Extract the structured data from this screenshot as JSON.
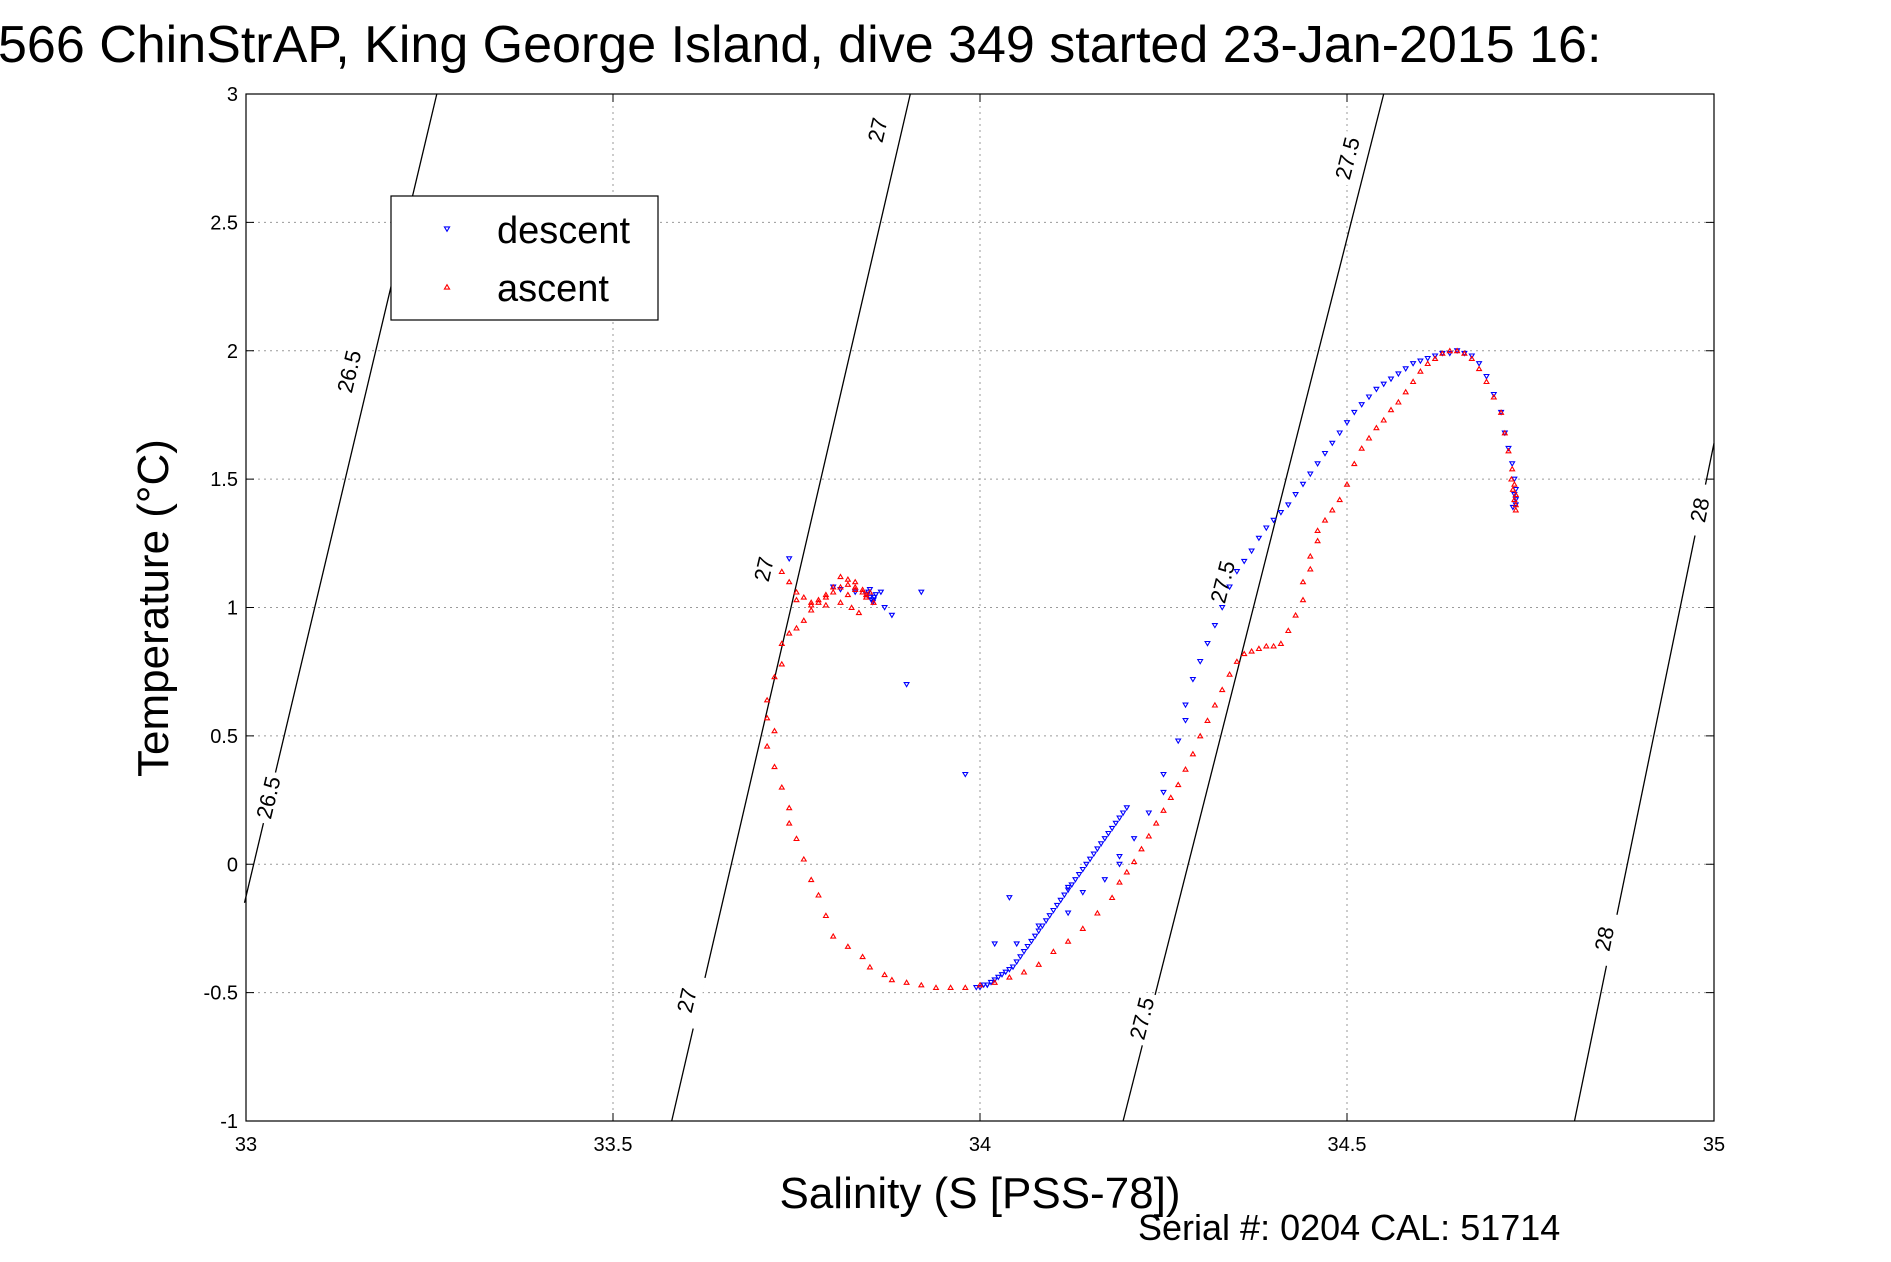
{
  "chart_data": {
    "type": "scatter",
    "title": "566 ChinStrAP, King George Island, dive 349 started 23-Jan-2015 16:",
    "xlabel": "Salinity (S [PSS-78])",
    "ylabel": "Temperature (°C)",
    "footer": "Serial #: 0204  CAL: 51714",
    "xlim": [
      33,
      35
    ],
    "ylim": [
      -1,
      3
    ],
    "grid": true,
    "legend_position": "top-left",
    "xticks": [
      {
        "value": 33,
        "label": "33"
      },
      {
        "value": 33.5,
        "label": "33.5"
      },
      {
        "value": 34,
        "label": "34"
      },
      {
        "value": 34.5,
        "label": "34.5"
      },
      {
        "value": 35,
        "label": "35"
      }
    ],
    "yticks": [
      {
        "value": -1,
        "label": "-1"
      },
      {
        "value": -0.5,
        "label": "-0.5"
      },
      {
        "value": 0,
        "label": "0"
      },
      {
        "value": 0.5,
        "label": "0.5"
      },
      {
        "value": 1,
        "label": "1"
      },
      {
        "value": 1.5,
        "label": "1.5"
      },
      {
        "value": 2,
        "label": "2"
      },
      {
        "value": 2.5,
        "label": "2.5"
      },
      {
        "value": 3,
        "label": "3"
      }
    ],
    "contours": [
      {
        "level": "26.5",
        "points": [
          [
            32.998,
            -0.15
          ],
          [
            33.26,
            3.0
          ]
        ],
        "labels": [
          {
            "text": "26.5",
            "x": 33.14,
            "y": 1.92
          },
          {
            "text": "26.5",
            "x": 33.03,
            "y": 0.26
          }
        ]
      },
      {
        "level": "27",
        "points": [
          [
            33.58,
            -1.0
          ],
          [
            33.905,
            3.0
          ]
        ],
        "labels": [
          {
            "text": "27",
            "x": 33.86,
            "y": 2.86
          },
          {
            "text": "27",
            "x": 33.705,
            "y": 1.15
          },
          {
            "text": "27",
            "x": 33.6,
            "y": -0.53
          }
        ]
      },
      {
        "level": "27.5",
        "points": [
          [
            34.195,
            -1.0
          ],
          [
            34.55,
            3.0
          ]
        ],
        "labels": [
          {
            "text": "27.5",
            "x": 34.5,
            "y": 2.75
          },
          {
            "text": "27.5",
            "x": 34.33,
            "y": 1.1
          },
          {
            "text": "27.5",
            "x": 34.22,
            "y": -0.6
          }
        ]
      },
      {
        "level": "28",
        "points": [
          [
            34.81,
            -1.0
          ],
          [
            35.0,
            1.64
          ]
        ],
        "labels": [
          {
            "text": "28",
            "x": 34.98,
            "y": 1.38
          },
          {
            "text": "28",
            "x": 34.85,
            "y": -0.29
          }
        ]
      }
    ],
    "series": [
      {
        "name": "descent",
        "color": "#0000ff",
        "marker": "triangle-down",
        "x": [
          33.74,
          33.855,
          33.88,
          33.85,
          33.865,
          33.8,
          33.81,
          33.83,
          33.845,
          33.85,
          33.852,
          33.854,
          33.856,
          33.858,
          33.848,
          33.87,
          33.9,
          33.92,
          33.98,
          34.04,
          34.02,
          34.01,
          34.05,
          34.08,
          34.12,
          34.12,
          34.14,
          34.17,
          34.19,
          34.19,
          34.21,
          34.23,
          34.25,
          34.25,
          34.27,
          34.28,
          34.28,
          34.29,
          34.3,
          34.31,
          34.32,
          34.33,
          34.34,
          34.35,
          34.36,
          34.37,
          34.38,
          34.39,
          34.4,
          34.41,
          34.42,
          34.43,
          34.44,
          34.45,
          34.46,
          34.47,
          34.48,
          34.49,
          34.5,
          34.51,
          34.52,
          34.53,
          34.54,
          34.55,
          34.56,
          34.57,
          34.58,
          34.59,
          34.6,
          34.61,
          34.62,
          34.63,
          34.64,
          34.65,
          34.66,
          34.67,
          34.68,
          34.69,
          34.7,
          34.71,
          34.715,
          34.72,
          34.725,
          34.728,
          34.73,
          34.73,
          34.73,
          34.728,
          34.726,
          33.995,
          34.0,
          34.005,
          34.01,
          34.015,
          34.02,
          34.025,
          34.03,
          34.035,
          34.04,
          34.045,
          34.05,
          34.055,
          34.06,
          34.065,
          34.07,
          34.075,
          34.08,
          34.085,
          34.09,
          34.095,
          34.1,
          34.105,
          34.11,
          34.115,
          34.12,
          34.125,
          34.13,
          34.135,
          34.14,
          34.145,
          34.15,
          34.155,
          34.16,
          34.165,
          34.17,
          34.175,
          34.18,
          34.185,
          34.19,
          34.195,
          34.2
        ],
        "y": [
          1.19,
          1.03,
          0.97,
          1.07,
          1.06,
          1.08,
          1.07,
          1.06,
          1.05,
          1.04,
          1.03,
          1.02,
          1.04,
          1.05,
          1.06,
          1.0,
          0.7,
          1.06,
          0.35,
          -0.13,
          -0.31,
          -0.47,
          -0.31,
          -0.24,
          -0.19,
          -0.09,
          -0.11,
          -0.06,
          0.0,
          0.03,
          0.1,
          0.2,
          0.28,
          0.35,
          0.48,
          0.56,
          0.62,
          0.72,
          0.79,
          0.86,
          0.93,
          1.0,
          1.08,
          1.14,
          1.18,
          1.22,
          1.27,
          1.31,
          1.34,
          1.37,
          1.4,
          1.44,
          1.48,
          1.52,
          1.56,
          1.6,
          1.64,
          1.68,
          1.72,
          1.76,
          1.79,
          1.82,
          1.85,
          1.87,
          1.89,
          1.91,
          1.93,
          1.95,
          1.96,
          1.97,
          1.98,
          1.99,
          1.99,
          2.0,
          1.99,
          1.98,
          1.95,
          1.9,
          1.83,
          1.76,
          1.68,
          1.62,
          1.56,
          1.5,
          1.46,
          1.42,
          1.4,
          1.44,
          1.39,
          -0.48,
          -0.48,
          -0.47,
          -0.47,
          -0.46,
          -0.45,
          -0.44,
          -0.43,
          -0.42,
          -0.41,
          -0.4,
          -0.38,
          -0.36,
          -0.34,
          -0.32,
          -0.3,
          -0.28,
          -0.26,
          -0.24,
          -0.22,
          -0.2,
          -0.18,
          -0.16,
          -0.14,
          -0.12,
          -0.1,
          -0.08,
          -0.06,
          -0.04,
          -0.02,
          0.0,
          0.02,
          0.04,
          0.06,
          0.08,
          0.1,
          0.12,
          0.14,
          0.16,
          0.18,
          0.2,
          0.22
        ]
      },
      {
        "name": "ascent",
        "color": "#ff0000",
        "marker": "triangle-up",
        "x": [
          33.75,
          33.77,
          33.79,
          33.81,
          33.82,
          33.83,
          33.84,
          33.845,
          33.85,
          33.83,
          33.82,
          33.81,
          33.8,
          33.79,
          33.78,
          33.77,
          33.76,
          33.75,
          33.74,
          33.73,
          33.73,
          33.72,
          33.71,
          33.71,
          33.72,
          33.71,
          33.72,
          33.73,
          33.74,
          33.74,
          33.75,
          33.76,
          33.77,
          33.78,
          33.79,
          33.8,
          33.82,
          33.84,
          33.85,
          33.87,
          33.88,
          33.9,
          33.92,
          33.94,
          33.96,
          33.98,
          34.0,
          34.02,
          34.04,
          34.06,
          34.08,
          34.1,
          34.12,
          34.14,
          34.16,
          34.18,
          34.19,
          34.2,
          34.21,
          34.22,
          34.23,
          34.24,
          34.25,
          34.26,
          34.27,
          34.28,
          34.29,
          34.3,
          34.31,
          34.32,
          34.33,
          34.34,
          34.35,
          34.36,
          34.37,
          34.38,
          34.39,
          34.4,
          34.41,
          34.42,
          34.43,
          34.44,
          34.44,
          34.45,
          34.45,
          34.46,
          34.46,
          34.47,
          34.48,
          34.49,
          34.5,
          34.51,
          34.52,
          34.53,
          34.54,
          34.55,
          34.56,
          34.57,
          34.58,
          34.59,
          34.6,
          34.61,
          34.62,
          34.63,
          34.64,
          34.65,
          34.66,
          34.67,
          34.68,
          34.69,
          34.7,
          34.71,
          34.715,
          34.72,
          34.725,
          34.728,
          34.73,
          34.73,
          34.73,
          34.728,
          34.726,
          34.724,
          33.73,
          33.74,
          33.75,
          33.76,
          33.77,
          33.78,
          33.79,
          33.8,
          33.81,
          33.82,
          33.83,
          33.84,
          33.825,
          33.835,
          33.845,
          33.855
        ],
        "y": [
          1.03,
          1.01,
          1.01,
          1.02,
          1.05,
          1.08,
          1.07,
          1.05,
          1.06,
          1.1,
          1.11,
          1.12,
          1.08,
          1.05,
          1.02,
          0.99,
          0.95,
          0.92,
          0.9,
          0.86,
          0.78,
          0.73,
          0.64,
          0.57,
          0.52,
          0.46,
          0.38,
          0.3,
          0.22,
          0.16,
          0.1,
          0.02,
          -0.06,
          -0.12,
          -0.2,
          -0.28,
          -0.32,
          -0.36,
          -0.4,
          -0.43,
          -0.45,
          -0.46,
          -0.47,
          -0.48,
          -0.48,
          -0.48,
          -0.47,
          -0.46,
          -0.44,
          -0.42,
          -0.39,
          -0.34,
          -0.3,
          -0.25,
          -0.19,
          -0.13,
          -0.07,
          -0.03,
          0.01,
          0.06,
          0.11,
          0.16,
          0.21,
          0.26,
          0.31,
          0.37,
          0.43,
          0.5,
          0.56,
          0.62,
          0.68,
          0.74,
          0.79,
          0.82,
          0.83,
          0.84,
          0.85,
          0.85,
          0.86,
          0.91,
          0.97,
          1.03,
          1.1,
          1.15,
          1.2,
          1.26,
          1.3,
          1.34,
          1.38,
          1.42,
          1.48,
          1.56,
          1.62,
          1.66,
          1.7,
          1.73,
          1.77,
          1.8,
          1.84,
          1.88,
          1.92,
          1.95,
          1.97,
          1.99,
          2.0,
          2.0,
          1.99,
          1.97,
          1.93,
          1.88,
          1.82,
          1.76,
          1.68,
          1.61,
          1.54,
          1.48,
          1.44,
          1.4,
          1.38,
          1.42,
          1.46,
          1.5,
          1.14,
          1.1,
          1.06,
          1.04,
          1.02,
          1.03,
          1.04,
          1.06,
          1.08,
          1.09,
          1.07,
          1.06,
          1.0,
          0.98,
          1.04,
          1.02
        ]
      }
    ]
  }
}
